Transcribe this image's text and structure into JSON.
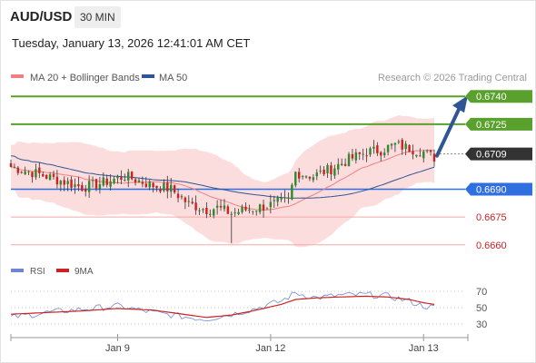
{
  "header": {
    "pair": "AUD/USD",
    "interval": "30 MIN",
    "datetime": "Tuesday, January 13, 2026 12:41:01 AM CET"
  },
  "legend": {
    "ma20": "MA 20 + Bollinger Bands",
    "ma50": "MA 50",
    "credit": "Research © 2026 Trading Central"
  },
  "rsi_legend": {
    "rsi": "RSI",
    "ma": "9MA"
  },
  "colors": {
    "bull": "#2e8b2e",
    "bear": "#cc2222",
    "ma20": "#f08080",
    "ma50": "#2f5597",
    "band_fill": "#fbd5d5",
    "target": "#5aa02c",
    "pivot": "#2f6fe0",
    "support": "#f4a7a7",
    "support_text": "#cc2222",
    "current": "#333333",
    "arrow": "#2f5597",
    "rsi": "#6f86d6",
    "rsi_ma": "#cc2222"
  },
  "chart_data": [
    {
      "type": "candlestick",
      "title": "AUD/USD 30 MIN",
      "ylim": [
        0.6655,
        0.6745
      ],
      "x_ticks": [
        "Jan 9",
        "Jan 12",
        "Jan 13"
      ],
      "candle_count": 120,
      "anchors": [
        {
          "i": 0,
          "v": 0.6702
        },
        {
          "i": 8,
          "v": 0.6698
        },
        {
          "i": 15,
          "v": 0.6694
        },
        {
          "i": 20,
          "v": 0.6691
        },
        {
          "i": 25,
          "v": 0.6693
        },
        {
          "i": 32,
          "v": 0.6697
        },
        {
          "i": 40,
          "v": 0.6692
        },
        {
          "i": 45,
          "v": 0.669
        },
        {
          "i": 50,
          "v": 0.6682
        },
        {
          "i": 55,
          "v": 0.6679
        },
        {
          "i": 58,
          "v": 0.668
        },
        {
          "i": 62,
          "v": 0.6677
        },
        {
          "i": 66,
          "v": 0.6679
        },
        {
          "i": 72,
          "v": 0.6681
        },
        {
          "i": 78,
          "v": 0.6684
        },
        {
          "i": 80,
          "v": 0.6699
        },
        {
          "i": 85,
          "v": 0.6697
        },
        {
          "i": 90,
          "v": 0.6701
        },
        {
          "i": 95,
          "v": 0.6706
        },
        {
          "i": 100,
          "v": 0.671
        },
        {
          "i": 104,
          "v": 0.6711
        },
        {
          "i": 108,
          "v": 0.6714
        },
        {
          "i": 112,
          "v": 0.6712
        },
        {
          "i": 116,
          "v": 0.671
        },
        {
          "i": 119,
          "v": 0.6707
        }
      ],
      "levels": [
        {
          "value": 0.674,
          "label": "0.6740",
          "kind": "target"
        },
        {
          "value": 0.6725,
          "label": "0.6725",
          "kind": "target"
        },
        {
          "value": 0.6709,
          "label": "0.6709",
          "kind": "current"
        },
        {
          "value": 0.669,
          "label": "0.6690",
          "kind": "pivot"
        },
        {
          "value": 0.6675,
          "label": "0.6675",
          "kind": "support"
        },
        {
          "value": 0.666,
          "label": "0.6660",
          "kind": "support"
        }
      ],
      "arrow": {
        "from": 0.6708,
        "to": 0.6739
      }
    },
    {
      "type": "line",
      "title": "RSI",
      "ylim": [
        20,
        80
      ],
      "y_ticks": [
        70,
        50,
        30
      ],
      "series": [
        {
          "name": "RSI",
          "anchors": [
            {
              "i": 0,
              "v": 38
            },
            {
              "i": 10,
              "v": 44
            },
            {
              "i": 20,
              "v": 48
            },
            {
              "i": 30,
              "v": 52
            },
            {
              "i": 40,
              "v": 44
            },
            {
              "i": 50,
              "v": 38
            },
            {
              "i": 55,
              "v": 36
            },
            {
              "i": 62,
              "v": 42
            },
            {
              "i": 68,
              "v": 48
            },
            {
              "i": 76,
              "v": 58
            },
            {
              "i": 80,
              "v": 68
            },
            {
              "i": 86,
              "v": 62
            },
            {
              "i": 92,
              "v": 65
            },
            {
              "i": 100,
              "v": 66
            },
            {
              "i": 106,
              "v": 64
            },
            {
              "i": 112,
              "v": 58
            },
            {
              "i": 116,
              "v": 52
            },
            {
              "i": 119,
              "v": 50
            }
          ]
        },
        {
          "name": "9MA",
          "anchors": [
            {
              "i": 0,
              "v": 42
            },
            {
              "i": 10,
              "v": 44
            },
            {
              "i": 20,
              "v": 46
            },
            {
              "i": 30,
              "v": 49
            },
            {
              "i": 40,
              "v": 47
            },
            {
              "i": 50,
              "v": 41
            },
            {
              "i": 55,
              "v": 38
            },
            {
              "i": 62,
              "v": 41
            },
            {
              "i": 68,
              "v": 46
            },
            {
              "i": 76,
              "v": 54
            },
            {
              "i": 80,
              "v": 60
            },
            {
              "i": 86,
              "v": 62
            },
            {
              "i": 92,
              "v": 63
            },
            {
              "i": 100,
              "v": 64
            },
            {
              "i": 106,
              "v": 63
            },
            {
              "i": 112,
              "v": 60
            },
            {
              "i": 116,
              "v": 56
            },
            {
              "i": 119,
              "v": 54
            }
          ]
        }
      ]
    }
  ]
}
